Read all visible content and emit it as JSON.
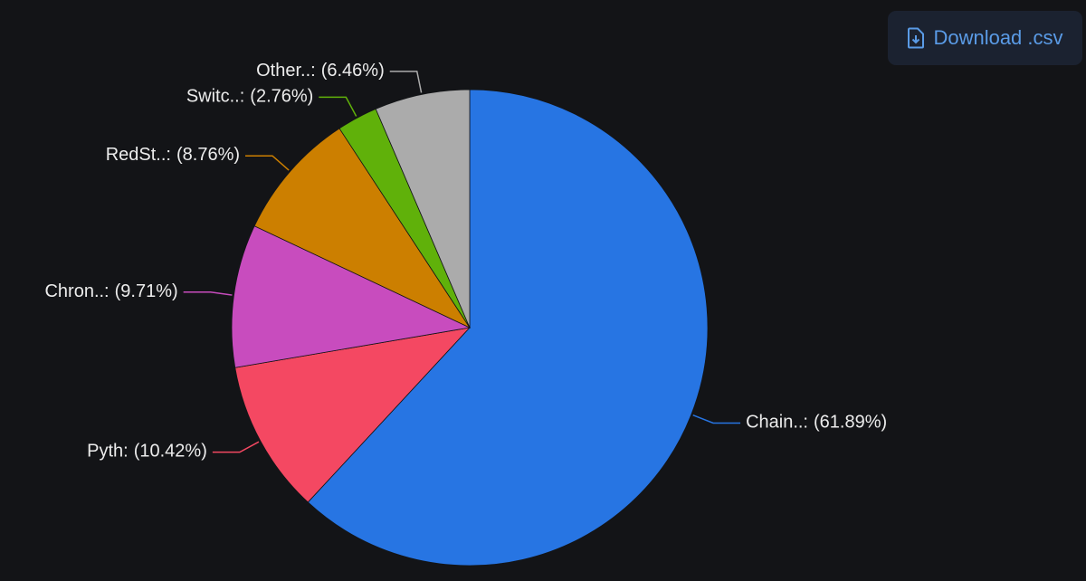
{
  "ui": {
    "download_button": "Download .csv"
  },
  "chart_data": {
    "type": "pie",
    "categories": [
      "Chain..:",
      "Pyth:",
      "Chron..:",
      "RedSt..:",
      "Switc..:",
      "Other..:"
    ],
    "values": [
      61.89,
      10.42,
      9.71,
      8.76,
      2.76,
      6.46
    ],
    "value_labels": [
      "(61.89%)",
      "(10.42%)",
      "(9.71%)",
      "(8.76%)",
      "(2.76%)",
      "(6.46%)"
    ],
    "colors": [
      "#2775e3",
      "#f44862",
      "#c84cbe",
      "#cc7f00",
      "#60b10a",
      "#ababab"
    ]
  }
}
